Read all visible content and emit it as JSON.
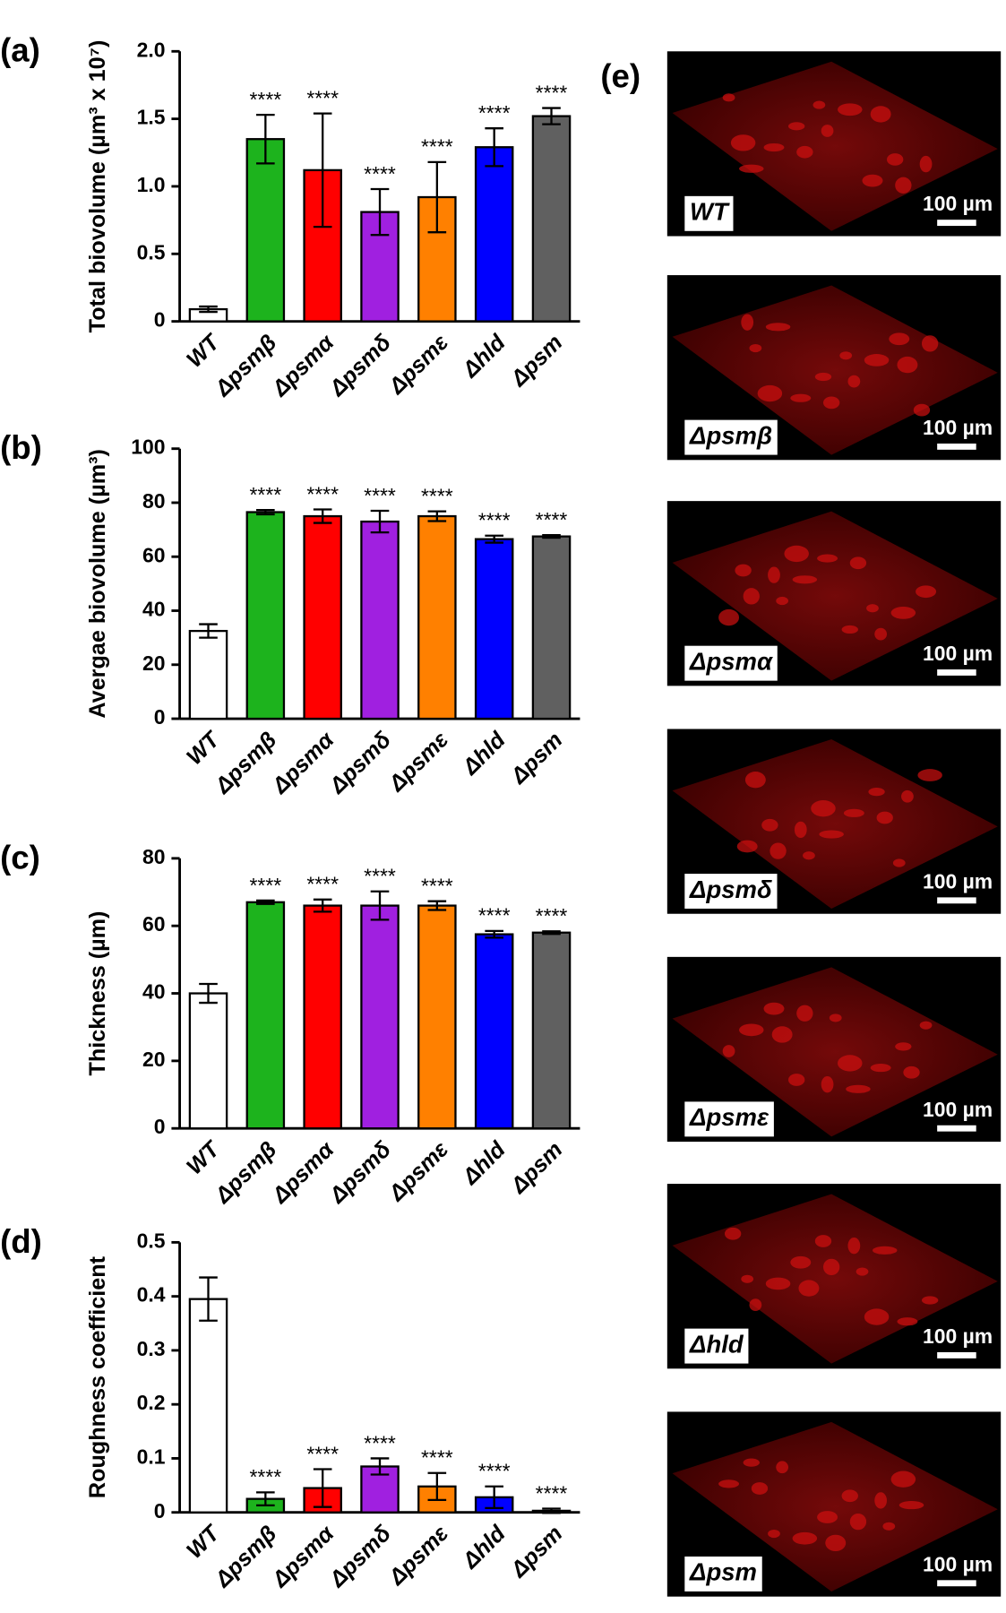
{
  "chart_data": [
    {
      "type": "bar",
      "panel_label": "(a)",
      "ylabel": "Total biovolume (µm³ x 10⁷)",
      "categories": [
        "WT",
        "Δpsmβ",
        "Δpsmα",
        "Δpsmδ",
        "Δpsmε",
        "Δhld",
        "Δpsm"
      ],
      "values": [
        0.09,
        1.35,
        1.12,
        0.81,
        0.92,
        1.29,
        1.52
      ],
      "errors": [
        0.02,
        0.18,
        0.42,
        0.17,
        0.26,
        0.14,
        0.06
      ],
      "annotations": [
        null,
        "****",
        "****",
        "****",
        "****",
        "****",
        "****"
      ],
      "colors": [
        "#ffffff",
        "#1db31d",
        "#ff0000",
        "#a020e0",
        "#ff8000",
        "#0000ff",
        "#606060"
      ],
      "ylim": [
        0,
        2
      ],
      "yticks": [
        0,
        0.5,
        {
          "value": 1,
          "label": "1.0"
        },
        1.5,
        {
          "value": 2,
          "label": "2.0"
        }
      ]
    },
    {
      "type": "bar",
      "panel_label": "(b)",
      "ylabel": "Avergae biovolume (µm³)",
      "categories": [
        "WT",
        "Δpsmβ",
        "Δpsmα",
        "Δpsmδ",
        "Δpsmε",
        "Δhld",
        "Δpsm"
      ],
      "values": [
        32.5,
        76.5,
        75,
        73,
        75,
        66.5,
        67.5
      ],
      "errors": [
        2.5,
        0.8,
        2.5,
        4,
        1.8,
        1.3,
        0.5
      ],
      "annotations": [
        null,
        "****",
        "****",
        "****",
        "****",
        "****",
        "****"
      ],
      "colors": [
        "#ffffff",
        "#1db31d",
        "#ff0000",
        "#a020e0",
        "#ff8000",
        "#0000ff",
        "#606060"
      ],
      "ylim": [
        0,
        100
      ],
      "yticks": [
        0,
        20,
        40,
        60,
        80,
        100
      ]
    },
    {
      "type": "bar",
      "panel_label": "(c)",
      "ylabel": "Thickness (µm)",
      "categories": [
        "WT",
        "Δpsmβ",
        "Δpsmα",
        "Δpsmδ",
        "Δpsmε",
        "Δhld",
        "Δpsm"
      ],
      "values": [
        40,
        67,
        66,
        66,
        66,
        57.5,
        58
      ],
      "errors": [
        2.8,
        0.5,
        1.8,
        4.2,
        1.3,
        1,
        0.4
      ],
      "annotations": [
        null,
        "****",
        "****",
        "****",
        "****",
        "****",
        "****"
      ],
      "colors": [
        "#ffffff",
        "#1db31d",
        "#ff0000",
        "#a020e0",
        "#ff8000",
        "#0000ff",
        "#606060"
      ],
      "ylim": [
        0,
        80
      ],
      "yticks": [
        0,
        20,
        40,
        60,
        80
      ]
    },
    {
      "type": "bar",
      "panel_label": "(d)",
      "ylabel": "Roughness coefficient",
      "categories": [
        "WT",
        "Δpsmβ",
        "Δpsmα",
        "Δpsmδ",
        "Δpsmε",
        "Δhld",
        "Δpsm"
      ],
      "values": [
        0.395,
        0.025,
        0.045,
        0.085,
        0.048,
        0.028,
        0.003
      ],
      "errors": [
        0.04,
        0.012,
        0.035,
        0.015,
        0.025,
        0.02,
        0.004
      ],
      "annotations": [
        null,
        "****",
        "****",
        "****",
        "****",
        "****",
        "****"
      ],
      "colors": [
        "#ffffff",
        "#1db31d",
        "#ff0000",
        "#a020e0",
        "#ff8000",
        "#0000ff",
        "#606060"
      ],
      "ylim": [
        0,
        0.5
      ],
      "yticks": [
        0,
        0.1,
        0.2,
        0.3,
        0.4,
        0.5
      ]
    }
  ],
  "panel_e": {
    "label": "(e)",
    "images": [
      {
        "label": "WT",
        "scale_bar": "100 µm"
      },
      {
        "label": "Δpsmβ",
        "scale_bar": "100 µm"
      },
      {
        "label": "Δpsmα",
        "scale_bar": "100 µm"
      },
      {
        "label": "Δpsmδ",
        "scale_bar": "100 µm"
      },
      {
        "label": "Δpsmε",
        "scale_bar": "100 µm"
      },
      {
        "label": "Δhld",
        "scale_bar": "100 µm"
      },
      {
        "label": "Δpsm",
        "scale_bar": "100 µm"
      }
    ]
  }
}
